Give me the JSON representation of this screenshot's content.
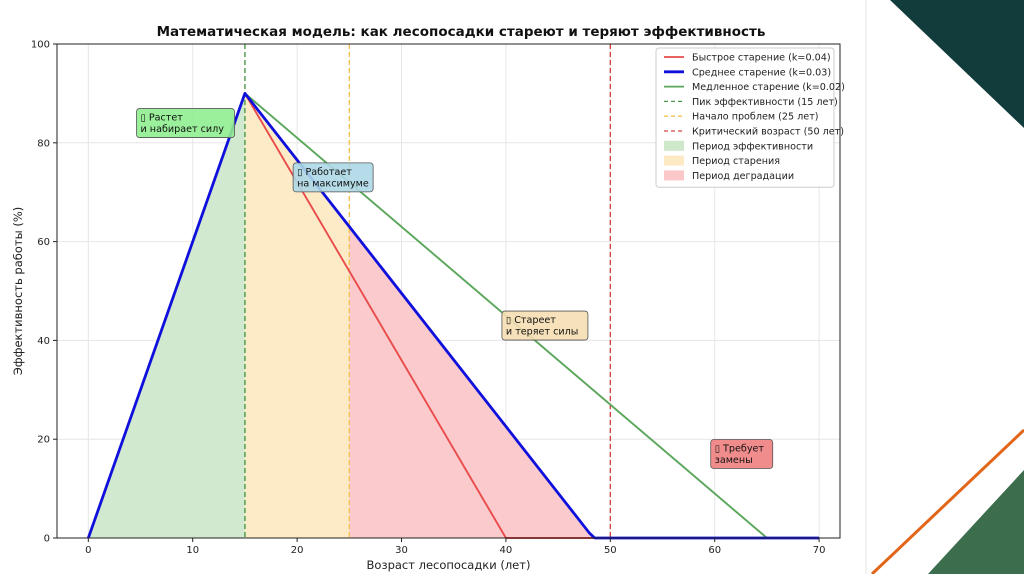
{
  "colors": {
    "fast": "#e84c4c",
    "medium": "#1010dd",
    "slow": "#5aa65a",
    "peak_line": "#4a9a4a",
    "problems_line": "#f2c14e",
    "critical_line": "#d84343",
    "fill_effective": "#cfe8cb",
    "fill_aging": "#fde9c4",
    "fill_degradation": "#fbc7c9",
    "deco_dark": "#123c3c",
    "deco_green": "#3c6d4d",
    "deco_orange": "#e2661a"
  },
  "chart_data": {
    "type": "line",
    "title": "Математическая модель: как лесопосадки стареют и теряют эффективность",
    "xlabel": "Возраст лесопосадки (лет)",
    "ylabel": "Эффективность работы (%)",
    "xlim": [
      -3,
      72
    ],
    "ylim": [
      0,
      100
    ],
    "xticks": [
      0,
      10,
      20,
      30,
      40,
      50,
      60,
      70
    ],
    "yticks": [
      0,
      20,
      40,
      60,
      80,
      100
    ],
    "grid": true,
    "legend_position": "top-right",
    "series": [
      {
        "name": "Быстрое старение (k=0.04)",
        "x": [
          0,
          15,
          40,
          70
        ],
        "y": [
          0,
          90,
          0,
          0
        ],
        "color_key": "fast",
        "style": "solid"
      },
      {
        "name": "Среднее старение (k=0.03)",
        "x": [
          0,
          15,
          48,
          48.5,
          70
        ],
        "y": [
          0,
          90,
          1,
          0,
          0
        ],
        "color_key": "medium",
        "style": "solid"
      },
      {
        "name": "Медленное старение (k=0.02)",
        "x": [
          0,
          15,
          65,
          70
        ],
        "y": [
          0,
          90,
          0,
          0
        ],
        "color_key": "slow",
        "style": "solid"
      }
    ],
    "vlines": [
      {
        "name": "Пик эффективности (15 лет)",
        "x": 15,
        "color_key": "peak_line"
      },
      {
        "name": "Начало проблем (25 лет)",
        "x": 25,
        "color_key": "problems_line"
      },
      {
        "name": "Критический возраст (50 лет)",
        "x": 50,
        "color_key": "critical_line"
      }
    ],
    "fills": [
      {
        "name": "Период эффективности",
        "x_from": 0,
        "x_to": 15,
        "color_key": "fill_effective"
      },
      {
        "name": "Период старения",
        "x_from": 15,
        "x_to": 25,
        "color_key": "fill_aging"
      },
      {
        "name": "Период деградации",
        "x_from": 25,
        "x_to": 48.5,
        "color_key": "fill_degradation"
      }
    ],
    "annotations": [
      {
        "lines": [
          "▯ Растет",
          "и набирает силу"
        ],
        "x": 5,
        "y": 84,
        "bg": "#90ee90"
      },
      {
        "lines": [
          "▯ Работает",
          "на максимуме"
        ],
        "x": 20,
        "y": 73,
        "bg": "#add8e6"
      },
      {
        "lines": [
          "▯ Стареет",
          "и теряет силы"
        ],
        "x": 40,
        "y": 43,
        "bg": "#f5deb3"
      },
      {
        "lines": [
          "▯ Требует",
          "замены"
        ],
        "x": 60,
        "y": 17,
        "bg": "#f08080"
      }
    ]
  }
}
